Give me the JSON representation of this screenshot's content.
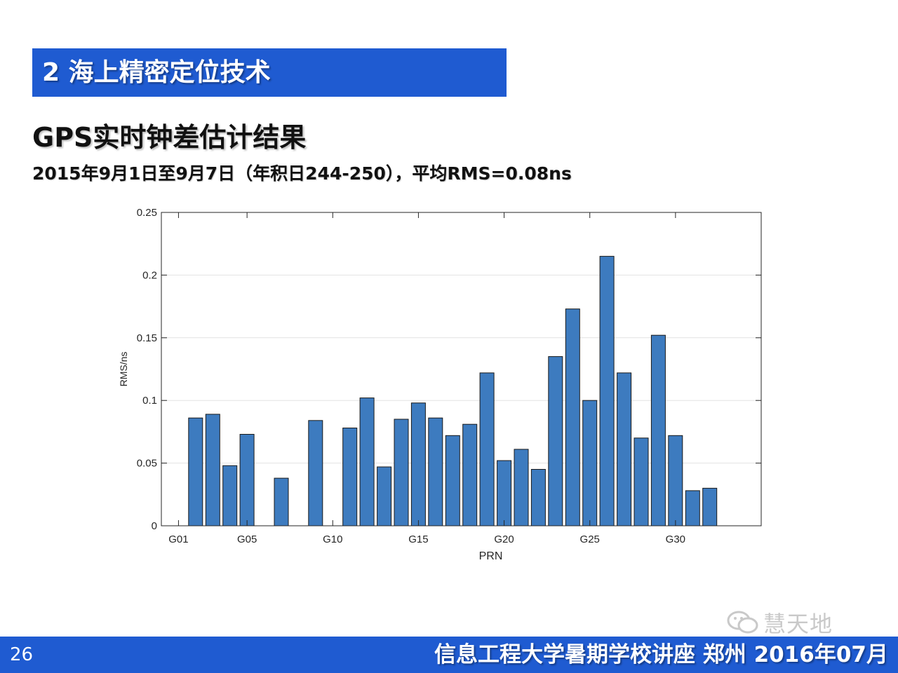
{
  "section": {
    "title": "2 海上精密定位技术"
  },
  "slide": {
    "title": "GPS实时钟差估计结果",
    "subtitle": "2015年9月1日至9月7日（年积日244-250），平均RMS=0.08ns"
  },
  "colors": {
    "bar": "#3d7bbf",
    "bar_stroke": "#1a1a1a",
    "header": "#1f5bd1",
    "grid": "#e2e2e2"
  },
  "chart_data": {
    "type": "bar",
    "xlabel": "PRN",
    "ylabel": "RMS/ns",
    "xlim": [
      0,
      35
    ],
    "ylim": [
      0,
      0.25
    ],
    "yticks": [
      0,
      0.05,
      0.1,
      0.15,
      0.2,
      0.25
    ],
    "ytick_labels": [
      "0",
      "0.05",
      "0.1",
      "0.15",
      "0.2",
      "0.25"
    ],
    "xticks": [
      1,
      5,
      10,
      15,
      20,
      25,
      30
    ],
    "xtick_labels": [
      "G01",
      "G05",
      "G10",
      "G15",
      "G20",
      "G25",
      "G30"
    ],
    "grid": true,
    "x": [
      2,
      3,
      4,
      5,
      7,
      9,
      11,
      12,
      13,
      14,
      15,
      16,
      17,
      18,
      19,
      20,
      21,
      22,
      23,
      24,
      25,
      26,
      27,
      28,
      29,
      30,
      31,
      32
    ],
    "values": [
      0.086,
      0.089,
      0.048,
      0.073,
      0.038,
      0.084,
      0.078,
      0.102,
      0.047,
      0.085,
      0.098,
      0.086,
      0.072,
      0.081,
      0.122,
      0.052,
      0.061,
      0.045,
      0.135,
      0.173,
      0.1,
      0.215,
      0.122,
      0.07,
      0.152,
      0.072,
      0.028,
      0.03
    ]
  },
  "footer": {
    "page_number": "26",
    "text": "信息工程大学暑期学校讲座  郑州  2016年07月"
  },
  "watermark": {
    "text": "慧天地",
    "icon": "wechat-icon"
  }
}
